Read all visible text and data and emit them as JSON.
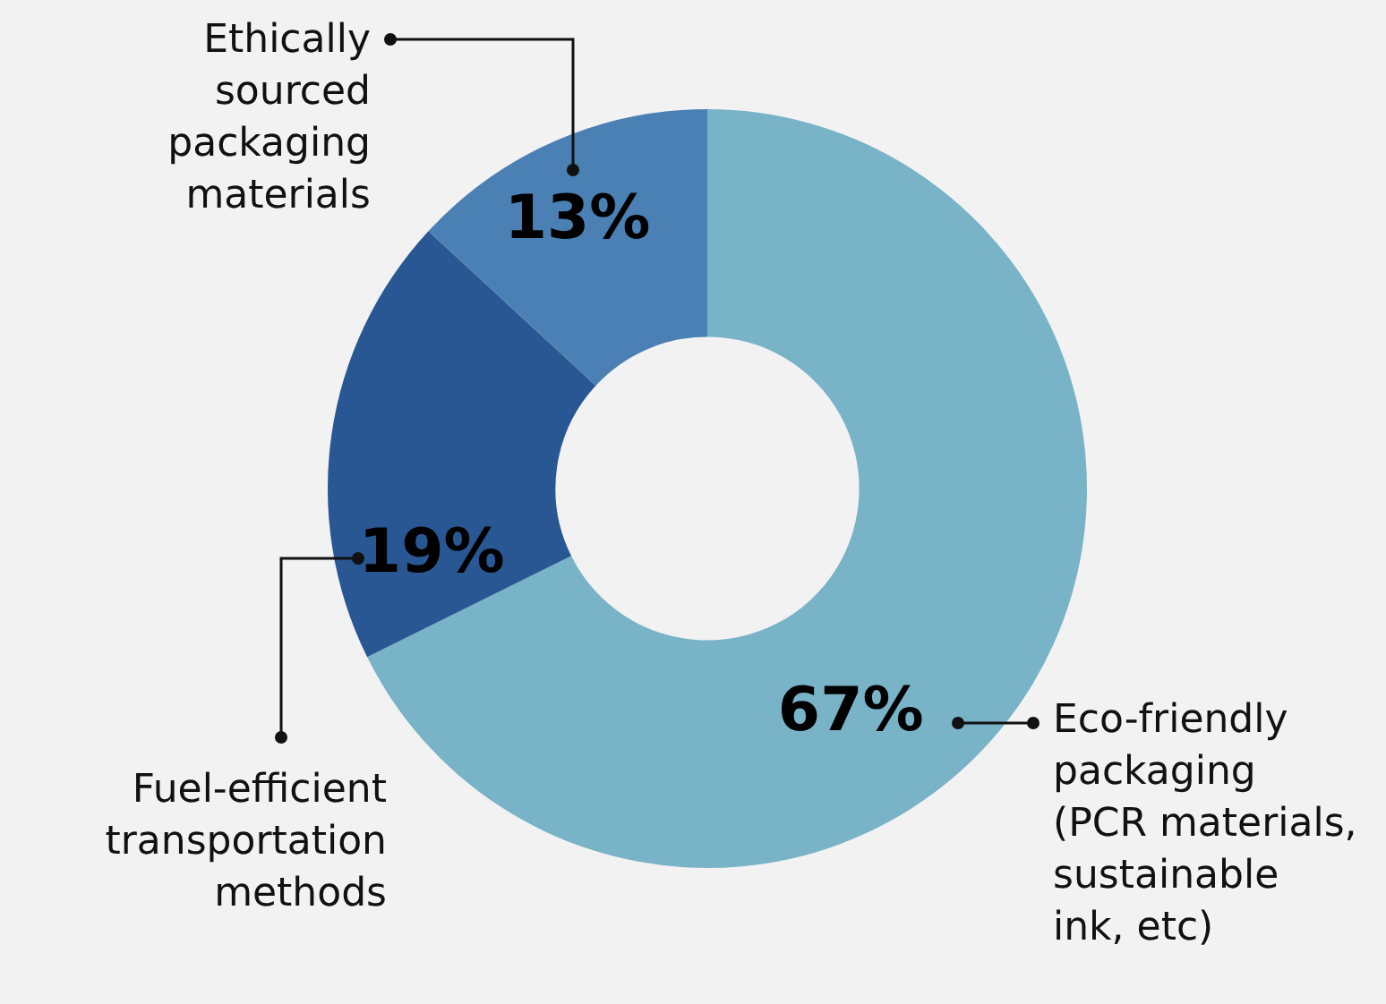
{
  "chart_data": {
    "type": "donut",
    "categories": [
      "Eco-friendly packaging (PCR materials, sustainable ink, etc)",
      "Fuel-efficient transportation methods",
      "Ethically sourced packaging materials"
    ],
    "values": [
      67,
      19,
      13
    ],
    "colors": [
      "#79b3c7",
      "#285793",
      "#4b80b4"
    ],
    "value_labels": [
      "67%",
      "19%",
      "13%"
    ],
    "legend": false
  }
}
